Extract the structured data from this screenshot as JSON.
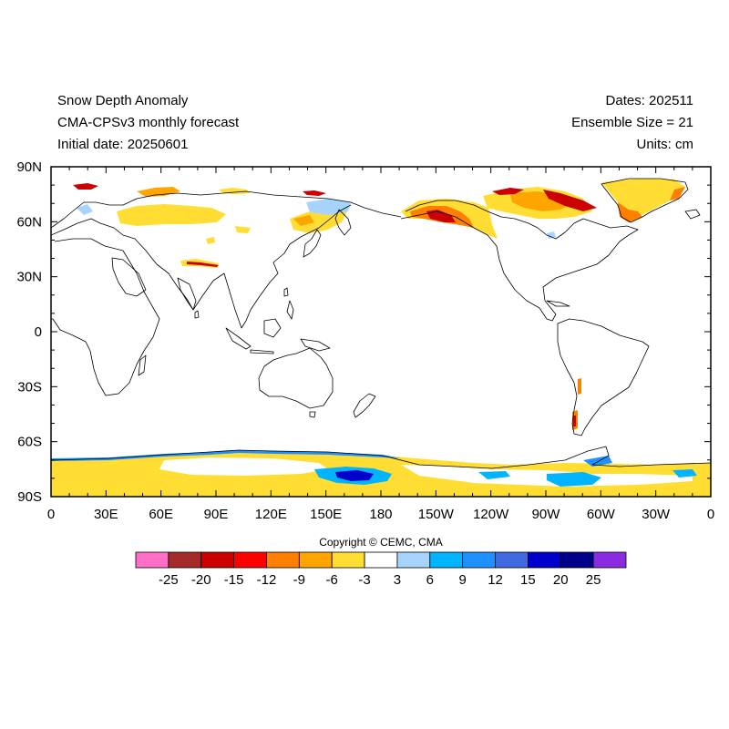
{
  "header": {
    "title": "Snow Depth Anomaly",
    "model": "CMA-CPSv3 monthly forecast",
    "initial_date": "Initial date: 20250601",
    "dates": "Dates: 202511",
    "ensemble": "Ensemble Size = 21",
    "units": "Units: cm"
  },
  "axes": {
    "lat_labels": [
      "90N",
      "60N",
      "30N",
      "0",
      "30S",
      "60S",
      "90S"
    ],
    "lon_labels": [
      "0",
      "30E",
      "60E",
      "90E",
      "120E",
      "150E",
      "180",
      "150W",
      "120W",
      "90W",
      "60W",
      "30W",
      "0"
    ]
  },
  "copyright": "Copyright © CEMC, CMA",
  "colorbar": {
    "colors": [
      "#ff6ec7",
      "#a52a2a",
      "#cc0000",
      "#ff0000",
      "#ff7f00",
      "#ffa500",
      "#ffdd33",
      "#ffffff",
      "#a6d4ff",
      "#00b4ff",
      "#1e90ff",
      "#4169e1",
      "#0000cd",
      "#00008b",
      "#8a2be2"
    ],
    "labels": [
      "-25",
      "-20",
      "-15",
      "-12",
      "-9",
      "-6",
      "-3",
      "3",
      "6",
      "9",
      "12",
      "15",
      "20",
      "25"
    ]
  },
  "colors": {
    "land_outline": "#000000",
    "light_yellow": "#ffdd33",
    "orange": "#ffa500",
    "dark_orange": "#ff7f00",
    "red": "#cc0000",
    "light_blue": "#a6d4ff",
    "cyan": "#00b4ff",
    "blue": "#1e90ff",
    "dark_blue": "#0000cd"
  }
}
